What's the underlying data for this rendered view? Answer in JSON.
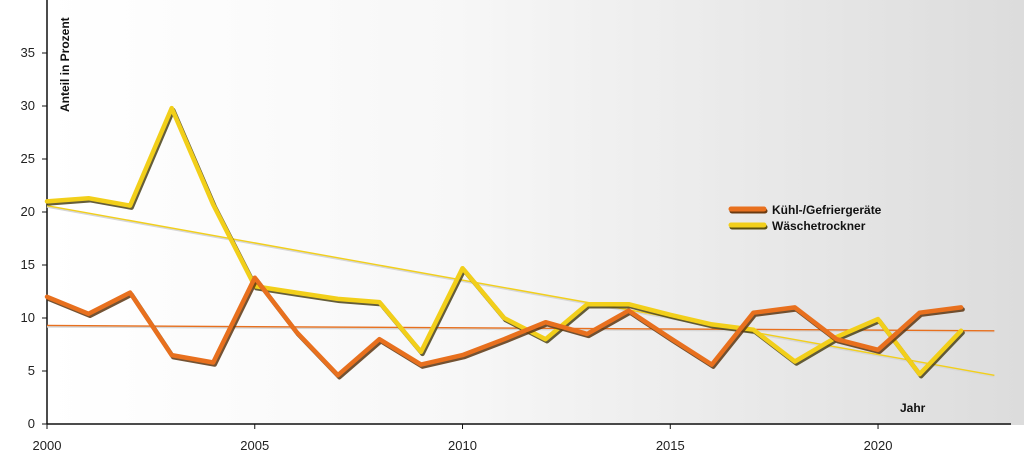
{
  "chart_data": {
    "type": "line",
    "title": "",
    "xlabel": "Jahr",
    "ylabel": "Anteil in Prozent",
    "xlim": [
      2000,
      2023.2
    ],
    "ylim": [
      0,
      40
    ],
    "xticks": [
      2000,
      2005,
      2010,
      2015,
      2020
    ],
    "yticks": [
      0,
      5,
      10,
      15,
      20,
      25,
      30,
      35
    ],
    "legend_position": "right",
    "grid": false,
    "colors": {
      "background_left": "#ffffff",
      "background_right": "#dcdcdc"
    },
    "series": [
      {
        "name": "Kühl-/Gefriergeräte",
        "color": "#e8701e",
        "x": [
          2000,
          2001,
          2002,
          2003,
          2004,
          2005,
          2006,
          2007,
          2008,
          2009,
          2010,
          2011,
          2012,
          2013,
          2014,
          2015,
          2016,
          2017,
          2018,
          2019,
          2020,
          2021,
          2022
        ],
        "values": [
          12.0,
          10.4,
          12.4,
          6.5,
          5.8,
          13.8,
          8.7,
          4.6,
          8.0,
          5.6,
          6.5,
          8.0,
          9.6,
          8.5,
          10.7,
          8.1,
          5.6,
          10.5,
          11.0,
          8.0,
          7.0,
          10.5,
          11.0
        ],
        "trend": [
          9.2,
          8.7
        ]
      },
      {
        "name": "Wäschetrockner",
        "color": "#f2cf1a",
        "x": [
          2000,
          2001,
          2002,
          2003,
          2004,
          2005,
          2006,
          2007,
          2008,
          2009,
          2010,
          2011,
          2012,
          2013,
          2014,
          2015,
          2016,
          2017,
          2018,
          2019,
          2020,
          2021,
          2022
        ],
        "values": [
          21.0,
          21.3,
          20.6,
          29.8,
          20.7,
          13.0,
          12.4,
          11.8,
          11.5,
          6.8,
          14.7,
          10.0,
          8.0,
          11.3,
          11.3,
          10.3,
          9.4,
          8.9,
          5.9,
          8.2,
          9.9,
          4.7,
          8.8
        ],
        "trend": [
          20.5,
          4.5
        ]
      }
    ],
    "trend_x": [
      2000,
      2022.8
    ]
  }
}
